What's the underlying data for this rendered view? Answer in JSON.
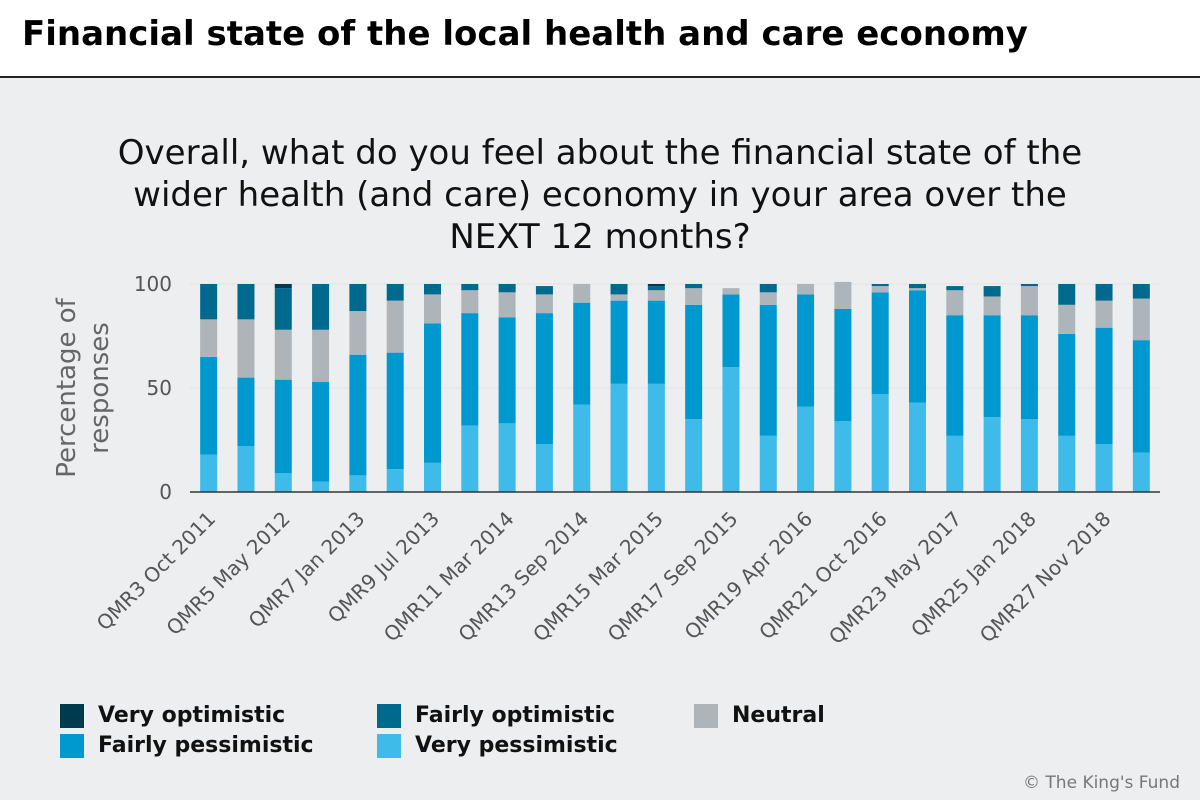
{
  "header": {
    "title": "Financial state of the local health and care economy"
  },
  "chart_data": {
    "type": "bar",
    "stacked": true,
    "title_lines": [
      "Overall, what do you feel about the financial state of the",
      "wider health (and care) economy in your area over the",
      "NEXT 12 months?"
    ],
    "ylabel_lines": [
      "Percentage of",
      "responses"
    ],
    "ylim": [
      0,
      100
    ],
    "yticks": [
      0,
      50,
      100
    ],
    "grid": true,
    "categories": [
      "QMR3 Oct 2011",
      "QMR4",
      "QMR5 May 2012",
      "QMR6",
      "QMR7 Jan 2013",
      "QMR8",
      "QMR9 Jul 2013",
      "QMR10",
      "QMR11 Mar 2014",
      "QMR12",
      "QMR13 Sep 2014",
      "QMR14",
      "QMR15 Mar 2015",
      "QMR16",
      "QMR17 Sep 2015",
      "QMR18",
      "QMR19 Apr 2016",
      "QMR20",
      "QMR21 Oct 2016",
      "QMR22",
      "QMR23 May 2017",
      "QMR24",
      "QMR25 Jan 2018",
      "QMR26",
      "QMR27 Nov 2018",
      "QMR28"
    ],
    "tick_labels": [
      "QMR3 Oct 2011",
      "",
      "QMR5 May 2012",
      "",
      "QMR7 Jan 2013",
      "",
      "QMR9 Jul 2013",
      "",
      "QMR11 Mar 2014",
      "",
      "QMR13 Sep 2014",
      "",
      "QMR15 Mar 2015",
      "",
      "QMR17 Sep 2015",
      "",
      "QMR19 Apr 2016",
      "",
      "QMR21 Oct 2016",
      "",
      "QMR23 May 2017",
      "",
      "QMR25 Jan 2018",
      "",
      "QMR27 Nov 2018",
      ""
    ],
    "series": [
      {
        "name": "Very pessimistic",
        "color": "#3fbbe9",
        "values": [
          18,
          22,
          9,
          5,
          8,
          11,
          14,
          32,
          33,
          23,
          42,
          52,
          52,
          35,
          60,
          27,
          41,
          34,
          47,
          43,
          27,
          36,
          35,
          27,
          23,
          19
        ]
      },
      {
        "name": "Fairly pessimistic",
        "color": "#0099cf",
        "values": [
          47,
          33,
          45,
          48,
          58,
          56,
          67,
          54,
          51,
          63,
          49,
          40,
          40,
          55,
          35,
          63,
          54,
          54,
          49,
          54,
          58,
          49,
          50,
          49,
          56,
          54
        ]
      },
      {
        "name": "Neutral",
        "color": "#adb5ba",
        "values": [
          18,
          28,
          24,
          25,
          21,
          25,
          14,
          11,
          12,
          9,
          9,
          3,
          5,
          8,
          3,
          6,
          5,
          13,
          3,
          1,
          12,
          9,
          14,
          14,
          13,
          20
        ]
      },
      {
        "name": "Fairly optimistic",
        "color": "#006a8e",
        "values": [
          17,
          17,
          20,
          22,
          13,
          8,
          5,
          3,
          4,
          4,
          0,
          5,
          2,
          2,
          0,
          4,
          0,
          0,
          1,
          2,
          2,
          5,
          1,
          10,
          8,
          7
        ]
      },
      {
        "name": "Very optimistic",
        "color": "#003a4e",
        "values": [
          0,
          0,
          2,
          0,
          0,
          0,
          0,
          0,
          0,
          0,
          0,
          0,
          1,
          0,
          0,
          0,
          0,
          0,
          0,
          0,
          0,
          0,
          0,
          0,
          0,
          0
        ]
      }
    ],
    "legend": [
      {
        "label": "Very optimistic",
        "color": "#003a4e"
      },
      {
        "label": "Fairly optimistic",
        "color": "#006a8e"
      },
      {
        "label": "Neutral",
        "color": "#adb5ba"
      },
      {
        "label": "Fairly pessimistic",
        "color": "#0099cf"
      },
      {
        "label": "Very pessimistic",
        "color": "#3fbbe9"
      }
    ]
  },
  "footer": {
    "copyright": "© The King's Fund"
  }
}
